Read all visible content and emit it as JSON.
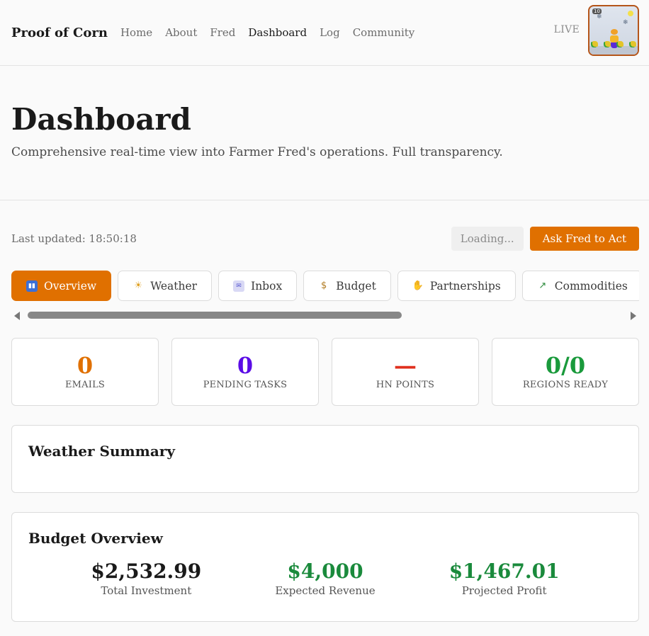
{
  "header": {
    "brand": "Proof of Corn",
    "nav": [
      "Home",
      "About",
      "Fred",
      "Dashboard",
      "Log",
      "Community"
    ],
    "active_nav": "Dashboard",
    "live_label": "LIVE",
    "thumb_badge": "10"
  },
  "hero": {
    "title": "Dashboard",
    "subtitle": "Comprehensive real-time view into Farmer Fred's operations. Full transparency."
  },
  "actions": {
    "updated": "Last updated: 18:50:18",
    "loading": "Loading...",
    "ask": "Ask Fred to Act"
  },
  "tabs": [
    {
      "label": "Overview",
      "icon": "bar-chart-icon",
      "active": true
    },
    {
      "label": "Weather",
      "icon": "sun-cloud-icon",
      "active": false
    },
    {
      "label": "Inbox",
      "icon": "inbox-icon",
      "active": false
    },
    {
      "label": "Budget",
      "icon": "money-bag-icon",
      "active": false
    },
    {
      "label": "Partnerships",
      "icon": "handshake-icon",
      "active": false
    },
    {
      "label": "Commodities",
      "icon": "trend-up-icon",
      "active": false
    },
    {
      "label": "",
      "icon": "globe-icon",
      "active": false
    }
  ],
  "stats": [
    {
      "value": "0",
      "label": "EMAILS",
      "color": "#e07000"
    },
    {
      "value": "0",
      "label": "PENDING TASKS",
      "color": "#5b0ce6"
    },
    {
      "value": "—",
      "label": "HN POINTS",
      "color": "#e0301e"
    },
    {
      "value": "0/0",
      "label": "REGIONS READY",
      "color": "#1a9a3c"
    }
  ],
  "weather": {
    "title": "Weather Summary"
  },
  "budget": {
    "title": "Budget Overview",
    "items": [
      {
        "value": "$2,532.99",
        "caption": "Total Investment",
        "color": "#1a1a1a"
      },
      {
        "value": "$4,000",
        "caption": "Expected Revenue",
        "color": "#1a8a3c"
      },
      {
        "value": "$1,467.01",
        "caption": "Projected Profit",
        "color": "#1a8a3c"
      }
    ]
  }
}
